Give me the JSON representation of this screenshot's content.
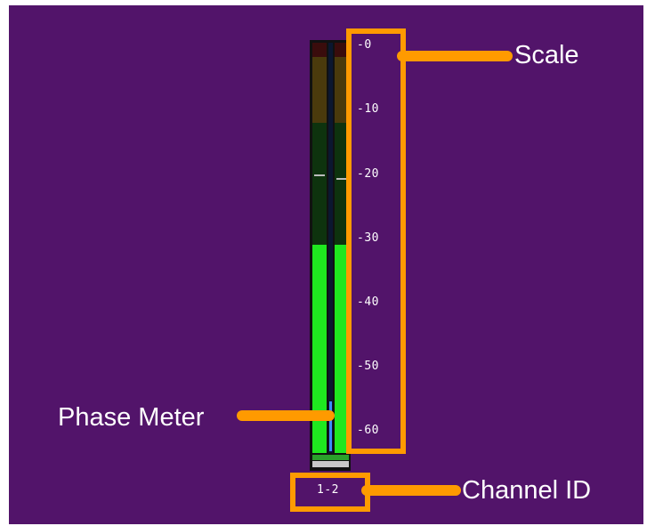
{
  "scale": {
    "ticks": [
      "-0",
      "-10",
      "-20",
      "-30",
      "-40",
      "-50",
      "-60"
    ]
  },
  "meter": {
    "channel_id": "1-2",
    "left_level": -30,
    "right_level": -30,
    "left_peak": -20,
    "right_peak": -20,
    "phase": 0
  },
  "callouts": {
    "scale": "Scale",
    "phase_meter": "Phase Meter",
    "channel_id": "Channel ID"
  },
  "colors": {
    "background": "#52146a",
    "highlight": "#ff9a00",
    "meter_green": "#1fe81f",
    "phase_blue": "#3a8cff"
  }
}
